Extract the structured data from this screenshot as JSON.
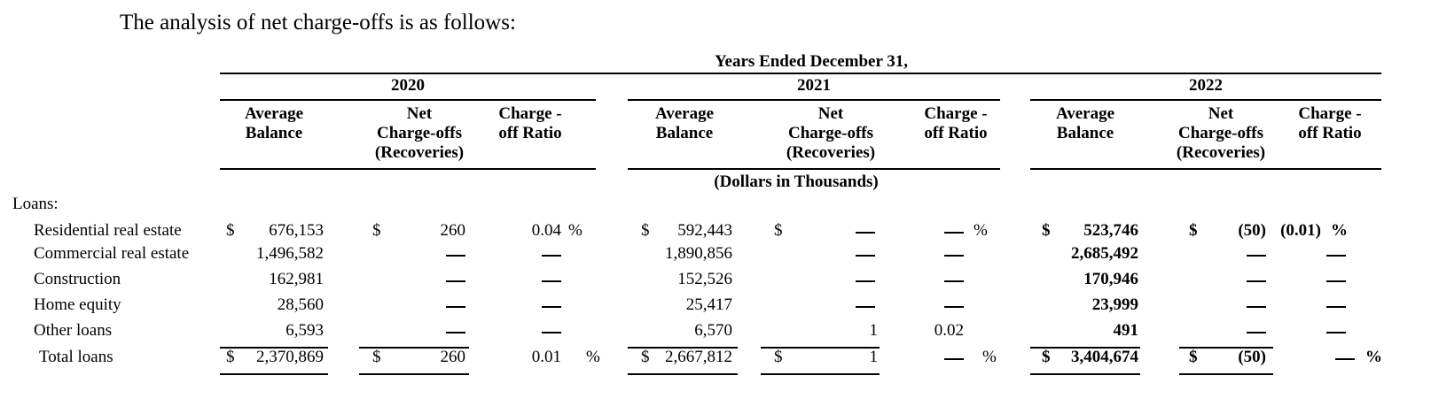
{
  "intro": "The analysis of net charge-offs is as follows:",
  "header": {
    "span_title": "Years Ended December 31,",
    "units": "(Dollars in Thousands)",
    "years": [
      "2020",
      "2021",
      "2022"
    ],
    "col_avg": [
      "Average",
      "Balance"
    ],
    "col_net": [
      "Net",
      "Charge-offs",
      "(Recoveries)"
    ],
    "col_ratio": [
      "Charge -",
      "off Ratio"
    ]
  },
  "section_label": "Loans:",
  "rows": [
    {
      "label": "Residential real estate",
      "y2020": {
        "avg": "676,153",
        "net": "260",
        "ratio": "0.04"
      },
      "y2021": {
        "avg": "592,443",
        "net": "—",
        "ratio": "—"
      },
      "y2022": {
        "avg": "523,746",
        "net": "(50)",
        "ratio": "(0.01)"
      }
    },
    {
      "label": "Commercial real estate",
      "y2020": {
        "avg": "1,496,582",
        "net": "—",
        "ratio": "—"
      },
      "y2021": {
        "avg": "1,890,856",
        "net": "—",
        "ratio": "—"
      },
      "y2022": {
        "avg": "2,685,492",
        "net": "—",
        "ratio": "—"
      }
    },
    {
      "label": "Construction",
      "y2020": {
        "avg": "162,981",
        "net": "—",
        "ratio": "—"
      },
      "y2021": {
        "avg": "152,526",
        "net": "—",
        "ratio": "—"
      },
      "y2022": {
        "avg": "170,946",
        "net": "—",
        "ratio": "—"
      }
    },
    {
      "label": "Home equity",
      "y2020": {
        "avg": "28,560",
        "net": "—",
        "ratio": "—"
      },
      "y2021": {
        "avg": "25,417",
        "net": "—",
        "ratio": "—"
      },
      "y2022": {
        "avg": "23,999",
        "net": "—",
        "ratio": "—"
      }
    },
    {
      "label": "Other loans",
      "y2020": {
        "avg": "6,593",
        "net": "—",
        "ratio": "—"
      },
      "y2021": {
        "avg": "6,570",
        "net": "1",
        "ratio": "0.02"
      },
      "y2022": {
        "avg": "491",
        "net": "—",
        "ratio": "—"
      }
    }
  ],
  "total": {
    "label": "Total loans",
    "y2020": {
      "avg": "2,370,869",
      "net": "260",
      "ratio": "0.01"
    },
    "y2021": {
      "avg": "2,667,812",
      "net": "1",
      "ratio": "—"
    },
    "y2022": {
      "avg": "3,404,674",
      "net": "(50)",
      "ratio": "—"
    }
  },
  "symbols": {
    "dollar": "$",
    "percent": "%"
  }
}
